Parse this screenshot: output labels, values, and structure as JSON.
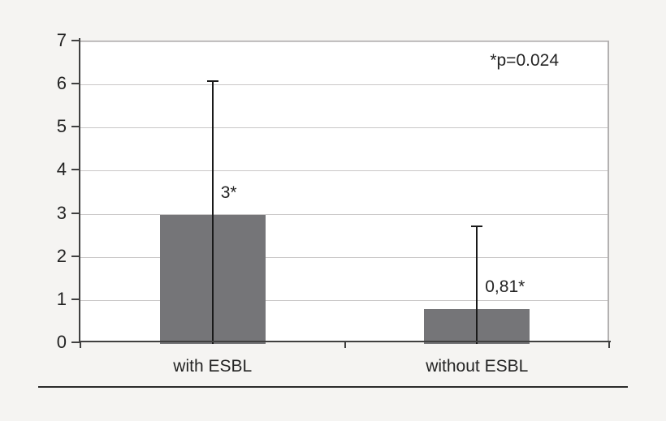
{
  "figure": {
    "background": "#f5f4f2"
  },
  "chart_data": {
    "type": "bar",
    "categories": [
      "with ESBL",
      "without ESBL"
    ],
    "values": [
      3,
      0.81
    ],
    "value_labels": [
      "3*",
      "0,81*"
    ],
    "error_top": [
      6.1,
      2.72
    ],
    "annotation": "*p=0.024",
    "title": "",
    "xlabel": "",
    "ylabel": "",
    "ylim": [
      0,
      7
    ],
    "yticks": [
      0,
      1,
      2,
      3,
      4,
      5,
      6,
      7
    ],
    "grid": true,
    "legend": "none",
    "colors": {
      "bar": "#757578",
      "grid": "#c9c7c7",
      "axis": "#404040",
      "error": "#1a1a1a",
      "plot_border": "#b3b1b1",
      "plot_bg": "#ffffff",
      "text": "#242424",
      "rule": "#2b2b2b"
    }
  }
}
